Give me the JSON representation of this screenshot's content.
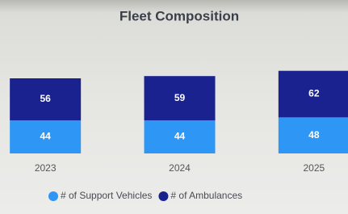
{
  "chart_data": {
    "type": "stacked-bar",
    "title": "Fleet Composition",
    "categories": [
      "2023",
      "2024",
      "2025"
    ],
    "series": [
      {
        "name": "# of Support Vehicles",
        "color": "#2e96f5",
        "values": [
          44,
          44,
          48
        ]
      },
      {
        "name": "# of Ambulances",
        "color": "#1a2290",
        "values": [
          56,
          59,
          62
        ]
      }
    ],
    "legend": "bottom"
  }
}
